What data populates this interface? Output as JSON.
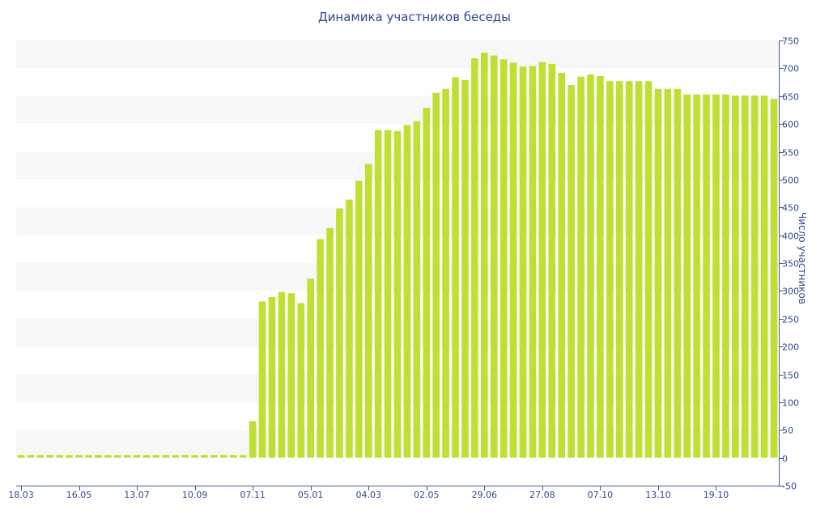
{
  "chart_data": {
    "type": "bar",
    "title": "Динамика участников беседы",
    "ylabel": "Число участников",
    "xlabel": "",
    "ylim": [
      -50,
      750
    ],
    "yticks": [
      -50,
      0,
      50,
      100,
      150,
      200,
      250,
      300,
      350,
      400,
      450,
      500,
      550,
      600,
      650,
      700,
      750
    ],
    "y_axis_side": "right",
    "grid": "alternating horizontal bands",
    "x_tick_labels": [
      "18.03",
      "16.05",
      "13.07",
      "10.09",
      "07.11",
      "05.01",
      "04.03",
      "02.05",
      "29.06",
      "27.08",
      "07.10",
      "13.10",
      "19.10"
    ],
    "x_tick_bar_index": [
      0,
      6,
      12,
      18,
      24,
      30,
      36,
      42,
      48,
      54,
      60,
      66,
      72
    ],
    "bar_color": "#bde032",
    "band_color": "#f7f7f7",
    "text_color": "#2c4a8c",
    "axis_color": "#3a5a9c",
    "values": [
      5,
      5,
      5,
      5,
      5,
      5,
      5,
      5,
      5,
      5,
      5,
      5,
      5,
      5,
      5,
      5,
      5,
      5,
      5,
      5,
      5,
      5,
      5,
      5,
      66,
      281,
      289,
      298,
      296,
      278,
      322,
      393,
      413,
      448,
      464,
      498,
      528,
      589,
      589,
      587,
      598,
      605,
      629,
      656,
      663,
      684,
      679,
      718,
      728,
      723,
      716,
      710,
      703,
      704,
      711,
      708,
      692,
      670,
      685,
      689,
      686,
      677,
      677,
      677,
      677,
      677,
      663,
      663,
      663,
      653,
      653,
      653,
      653,
      653,
      651,
      651,
      651,
      651,
      645
    ]
  }
}
